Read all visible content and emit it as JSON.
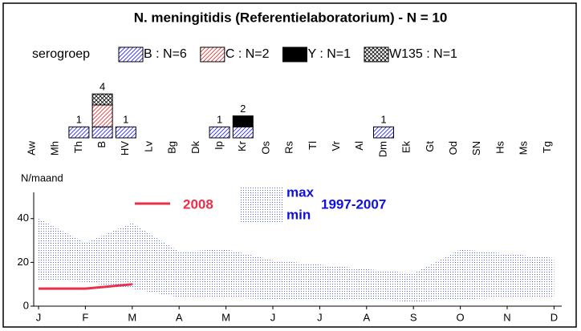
{
  "chart_data": [
    {
      "type": "stacked-units",
      "title": "N. meningitidis (Referentielaboratorium) - N = 10",
      "legend_title": "serogroep",
      "categories": [
        "Aw",
        "Mh",
        "Th",
        "B",
        "HV",
        "Lv",
        "Bg",
        "Dk",
        "Ip",
        "Kr",
        "Os",
        "Rs",
        "Tl",
        "Vr",
        "Al",
        "Dm",
        "Ek",
        "Gt",
        "Od",
        "SN",
        "Hs",
        "Ms",
        "Tg"
      ],
      "series": [
        {
          "name": "B : N=6",
          "color": "#2020ff",
          "hatch": "diagonal",
          "values": [
            0,
            0,
            1,
            1,
            1,
            0,
            0,
            0,
            1,
            1,
            0,
            0,
            0,
            0,
            0,
            1,
            0,
            0,
            0,
            0,
            0,
            0,
            0
          ]
        },
        {
          "name": "C : N=2",
          "color": "#e03030",
          "hatch": "diagonal",
          "values": [
            0,
            0,
            0,
            2,
            0,
            0,
            0,
            0,
            0,
            0,
            0,
            0,
            0,
            0,
            0,
            0,
            0,
            0,
            0,
            0,
            0,
            0,
            0
          ]
        },
        {
          "name": "Y : N=1",
          "color": "#000000",
          "hatch": "solid",
          "values": [
            0,
            0,
            0,
            0,
            0,
            0,
            0,
            0,
            0,
            1,
            0,
            0,
            0,
            0,
            0,
            0,
            0,
            0,
            0,
            0,
            0,
            0,
            0
          ]
        },
        {
          "name": "W135 : N=1",
          "color": "#000000",
          "hatch": "cross",
          "values": [
            0,
            0,
            0,
            1,
            0,
            0,
            0,
            0,
            0,
            0,
            0,
            0,
            0,
            0,
            0,
            0,
            0,
            0,
            0,
            0,
            0,
            0,
            0
          ]
        }
      ],
      "totals": [
        null,
        null,
        1,
        4,
        1,
        null,
        null,
        null,
        1,
        2,
        null,
        null,
        null,
        null,
        null,
        1,
        null,
        null,
        null,
        null,
        null,
        null,
        null
      ]
    },
    {
      "type": "band-line",
      "ylabel": "N/maand",
      "categories": [
        "J",
        "F",
        "M",
        "A",
        "M",
        "J",
        "J",
        "A",
        "S",
        "O",
        "N",
        "D"
      ],
      "ylim": [
        0,
        52
      ],
      "yticks": [
        0,
        20,
        40
      ],
      "band": {
        "label": "1997-2007",
        "color": "#5a66d8",
        "upper": {
          "name": "max",
          "values": [
            40,
            29,
            38,
            25,
            26,
            21,
            19,
            17,
            15,
            26,
            24,
            22
          ]
        },
        "lower": {
          "name": "min",
          "values": [
            12,
            11,
            8,
            4,
            4,
            3,
            3,
            3,
            2,
            3,
            4,
            4
          ]
        }
      },
      "series": [
        {
          "name": "2008",
          "color": "#e8304a",
          "values": [
            8,
            8,
            10,
            null,
            null,
            null,
            null,
            null,
            null,
            null,
            null,
            null
          ]
        }
      ]
    }
  ]
}
